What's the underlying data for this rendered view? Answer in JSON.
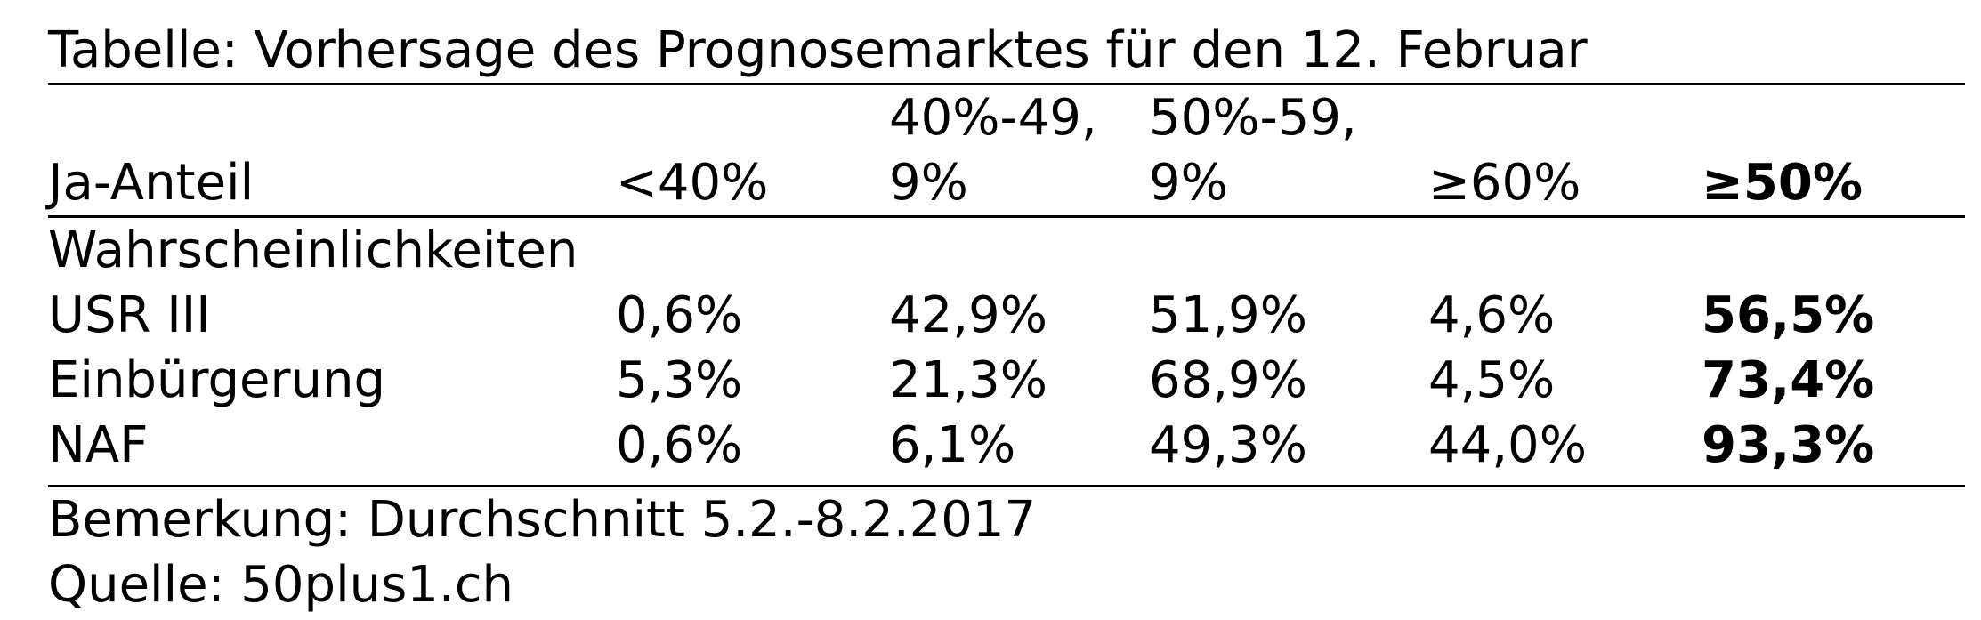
{
  "title": "Tabelle: Vorhersage des Prognosemarktes für den 12. Februar",
  "table": {
    "header": {
      "row_label": "Ja-Anteil",
      "cols": [
        "<40%",
        "40%-49,\n9%",
        "50%-59,\n9%",
        "≥60%",
        "≥50%"
      ]
    },
    "section_label": "Wahrscheinlichkeiten",
    "rows": [
      {
        "label": "USR III",
        "values": [
          "0,6%",
          "42,9%",
          "51,9%",
          "4,6%",
          "56,5%"
        ]
      },
      {
        "label": "Einbürgerung",
        "values": [
          "5,3%",
          "21,3%",
          "68,9%",
          "4,5%",
          "73,4%"
        ]
      },
      {
        "label": "NAF",
        "values": [
          "0,6%",
          "6,1%",
          "49,3%",
          "44,0%",
          "93,3%"
        ]
      }
    ]
  },
  "notes": {
    "remark": "Bemerkung: Durchschnitt 5.2.-8.2.2017",
    "source": "Quelle: 50plus1.ch"
  },
  "colors": {
    "text": "#000000",
    "background": "#ffffff",
    "rule": "#000000"
  },
  "chart_data": {
    "type": "table",
    "title": "Tabelle: Vorhersage des Prognosemarktes für den 12. Februar",
    "section": "Wahrscheinlichkeiten",
    "columns": [
      "Ja-Anteil",
      "<40%",
      "40%-49,9%",
      "50%-59,9%",
      "≥60%",
      "≥50%"
    ],
    "rows": [
      {
        "label": "USR III",
        "values_percent": [
          0.6,
          42.9,
          51.9,
          4.6,
          56.5
        ]
      },
      {
        "label": "Einbürgerung",
        "values_percent": [
          5.3,
          21.3,
          68.9,
          4.5,
          73.4
        ]
      },
      {
        "label": "NAF",
        "values_percent": [
          0.6,
          6.1,
          49.3,
          44.0,
          93.3
        ]
      }
    ],
    "bold_column": "≥50%",
    "note": "Bemerkung: Durchschnitt 5.2.-8.2.2017",
    "source": "Quelle: 50plus1.ch"
  }
}
